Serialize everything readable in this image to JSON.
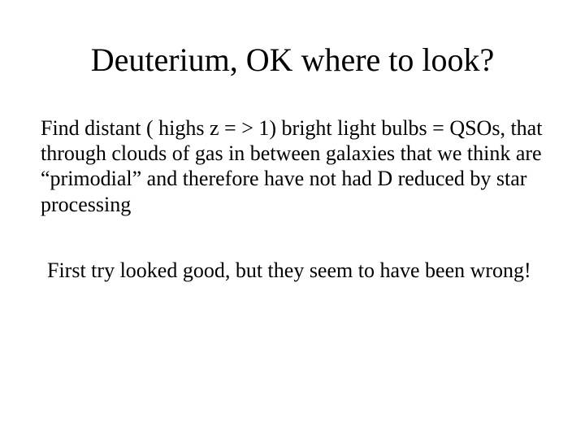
{
  "slide": {
    "title": "Deuterium, OK where to look?",
    "paragraph1": "Find distant ( highs z  = > 1) bright light bulbs = QSOs, that through clouds of gas in between galaxies that we think are “primodial” and therefore have not had D reduced by star processing",
    "paragraph2": "First try looked good, but they seem to have been wrong!",
    "background_color": "#ffffff",
    "text_color": "#000000",
    "title_fontsize": 40,
    "body_fontsize": 26,
    "font_family": "Times New Roman"
  }
}
